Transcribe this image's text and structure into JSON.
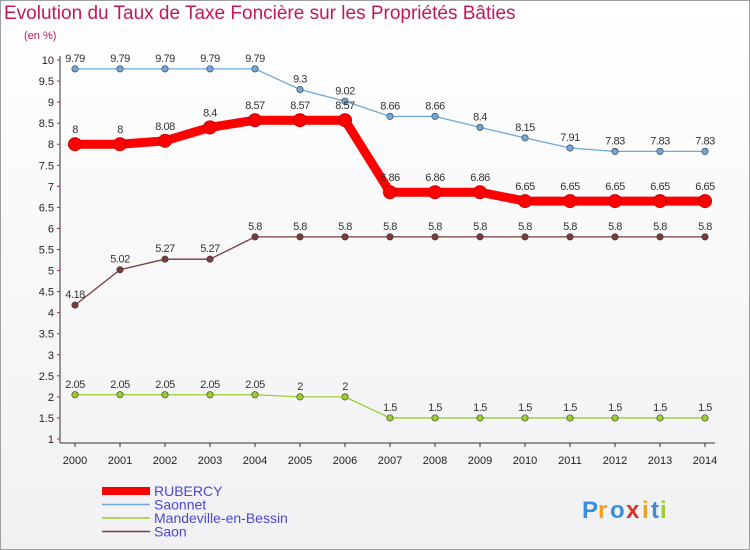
{
  "chart_data": {
    "type": "line",
    "title": "Evolution du Taux de Taxe Foncière sur les Propriétés Bâties",
    "ylabel": "(en %)",
    "xlabel": "",
    "x": [
      "2000",
      "2001",
      "2002",
      "2003",
      "2004",
      "2005",
      "2006",
      "2007",
      "2008",
      "2009",
      "2010",
      "2011",
      "2012",
      "2013",
      "2014"
    ],
    "ylim": [
      1,
      10
    ],
    "yticks": [
      "1",
      "1.5",
      "2",
      "2.5",
      "3",
      "3.5",
      "4",
      "4.5",
      "5",
      "5.5",
      "6",
      "6.5",
      "7",
      "7.5",
      "8",
      "8.5",
      "9",
      "9.5",
      "10"
    ],
    "series": [
      {
        "name": "RUBERCY",
        "color": "#ff0000",
        "labels": [
          "8",
          "8",
          "8.08",
          "8.4",
          "8.57",
          "8.57",
          "8.57",
          "6.86",
          "6.86",
          "6.86",
          "6.65",
          "6.65",
          "6.65",
          "6.65",
          "6.65"
        ],
        "values": [
          8,
          8,
          8.08,
          8.4,
          8.57,
          8.57,
          8.57,
          6.86,
          6.86,
          6.86,
          6.65,
          6.65,
          6.65,
          6.65,
          6.65
        ]
      },
      {
        "name": "Saonnet",
        "color": "#6fa8dc",
        "labels": [
          "9.79",
          "9.79",
          "9.79",
          "9.79",
          "9.79",
          "9.3",
          "9.02",
          "8.66",
          "8.66",
          "8.4",
          "8.15",
          "7.91",
          "7.83",
          "7.83",
          "7.83"
        ],
        "values": [
          9.79,
          9.79,
          9.79,
          9.79,
          9.79,
          9.3,
          9.02,
          8.66,
          8.66,
          8.4,
          8.15,
          7.91,
          7.83,
          7.83,
          7.83
        ]
      },
      {
        "name": "Mandeville-en-Bessin",
        "color": "#9acd32",
        "labels": [
          "2.05",
          "2.05",
          "2.05",
          "2.05",
          "2.05",
          "2",
          "2",
          "1.5",
          "1.5",
          "1.5",
          "1.5",
          "1.5",
          "1.5",
          "1.5",
          "1.5"
        ],
        "values": [
          2.05,
          2.05,
          2.05,
          2.05,
          2.05,
          2,
          2,
          1.5,
          1.5,
          1.5,
          1.5,
          1.5,
          1.5,
          1.5,
          1.5
        ]
      },
      {
        "name": "Saon",
        "color": "#7a3b3b",
        "labels": [
          "4.18",
          "5.02",
          "5.27",
          "5.27",
          "5.8",
          "5.8",
          "5.8",
          "5.8",
          "5.8",
          "5.8",
          "5.8",
          "5.8",
          "5.8",
          "5.8",
          "5.8"
        ],
        "values": [
          4.18,
          5.02,
          5.27,
          5.27,
          5.8,
          5.8,
          5.8,
          5.8,
          5.8,
          5.8,
          5.8,
          5.8,
          5.8,
          5.8,
          5.8
        ]
      }
    ]
  },
  "logo": {
    "text": "Proxiti",
    "letters": [
      "P",
      "r",
      "o",
      "x",
      "i",
      "t",
      "i"
    ],
    "colors": [
      "#3b8fd9",
      "#f0a020",
      "#3b8fd9",
      "#e0302a",
      "#f0a020",
      "#3b8fd9",
      "#9acd32"
    ]
  }
}
